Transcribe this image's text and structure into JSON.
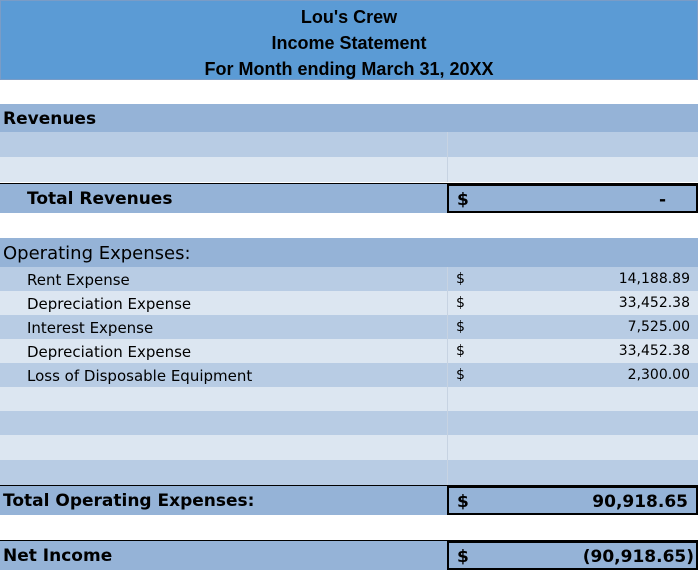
{
  "header": {
    "company": "Lou's Crew",
    "statement": "Income Statement",
    "period": "For Month ending March 31, 20XX"
  },
  "revenues": {
    "section_label": "Revenues",
    "total_label": "Total Revenues",
    "total_currency": "$",
    "total_value": "-"
  },
  "operating_expenses": {
    "section_label": "Operating Expenses:",
    "items": [
      {
        "label": "Rent Expense",
        "currency": "$",
        "value": "14,188.89"
      },
      {
        "label": "Depreciation Expense",
        "currency": "$",
        "value": "33,452.38"
      },
      {
        "label": "Interest Expense",
        "currency": "$",
        "value": "7,525.00"
      },
      {
        "label": "Depreciation Expense",
        "currency": "$",
        "value": "33,452.38"
      },
      {
        "label": "Loss of Disposable Equipment",
        "currency": "$",
        "value": "2,300.00"
      }
    ],
    "total_label": "Total Operating Expenses:",
    "total_currency": "$",
    "total_value": "90,918.65"
  },
  "net_income": {
    "label": "Net Income",
    "currency": "$",
    "value": "(90,918.65)"
  },
  "colors": {
    "header_blue": "#5b9bd5",
    "row_dark": "#95b3d7",
    "row_mid": "#b8cce4",
    "row_light": "#dce6f1"
  }
}
